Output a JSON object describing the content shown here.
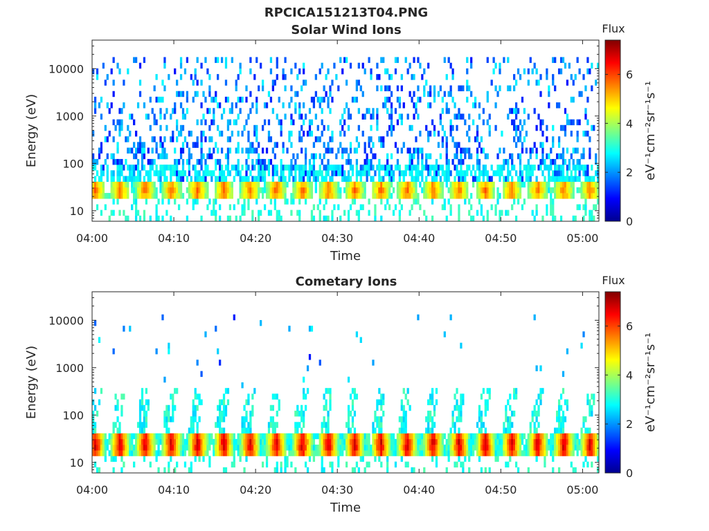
{
  "figure": {
    "suptitle": "RPCICA151213T04.PNG"
  },
  "chart_data": [
    {
      "type": "heatmap",
      "title": "Solar Wind Ions",
      "xlabel": "Time",
      "ylabel": "Energy (eV)",
      "y_scale": "log",
      "xlim": [
        "04:00",
        "05:02"
      ],
      "ylim": [
        6,
        40000
      ],
      "x_ticks": [
        "04:00",
        "04:10",
        "04:20",
        "04:30",
        "04:40",
        "04:50",
        "05:00"
      ],
      "y_ticks": [
        "10",
        "100",
        "1000",
        "10000"
      ],
      "colorbar": {
        "label_top": "Flux",
        "label_side": "eV⁻¹cm⁻²sr⁻¹s⁻¹",
        "range": [
          0,
          7.4
        ],
        "ticks": [
          "0",
          "2",
          "4",
          "6"
        ],
        "colormap": "jet"
      },
      "pulse_times_min": [
        0.3,
        3.3,
        6.4,
        9.6,
        12.8,
        16.0,
        19.2,
        22.4,
        25.6,
        28.8,
        32.0,
        35.2,
        38.4,
        41.6,
        44.8,
        48.0,
        51.2,
        54.4,
        57.6,
        60.8
      ],
      "band_energy_eV": [
        18,
        40
      ],
      "band_flux_peak": 5.5,
      "background_flux_range": [
        1.0,
        2.8
      ],
      "background_energy_eV": [
        100,
        20000
      ]
    },
    {
      "type": "heatmap",
      "title": "Cometary Ions",
      "xlabel": "Time",
      "ylabel": "Energy (eV)",
      "y_scale": "log",
      "xlim": [
        "04:00",
        "05:02"
      ],
      "ylim": [
        6,
        40000
      ],
      "x_ticks": [
        "04:00",
        "04:10",
        "04:20",
        "04:30",
        "04:40",
        "04:50",
        "05:00"
      ],
      "y_ticks": [
        "10",
        "100",
        "1000",
        "10000"
      ],
      "colorbar": {
        "label_top": "Flux",
        "label_side": "eV⁻¹cm⁻²sr⁻¹s⁻¹",
        "range": [
          0,
          7.4
        ],
        "ticks": [
          "0",
          "2",
          "4",
          "6"
        ],
        "colormap": "jet"
      },
      "pulse_times_min": [
        0.3,
        3.3,
        6.4,
        9.6,
        12.8,
        16.0,
        19.2,
        22.4,
        25.6,
        28.8,
        32.0,
        35.2,
        38.4,
        41.6,
        44.8,
        48.0,
        51.2,
        54.4,
        57.6,
        60.8
      ],
      "band_energy_eV": [
        14,
        40
      ],
      "band_flux_peak": 6.8,
      "plume_energy_eV": [
        40,
        400
      ],
      "background_flux_range": [
        1.0,
        2.8
      ],
      "background_energy_eV": [
        500,
        15000
      ]
    }
  ]
}
